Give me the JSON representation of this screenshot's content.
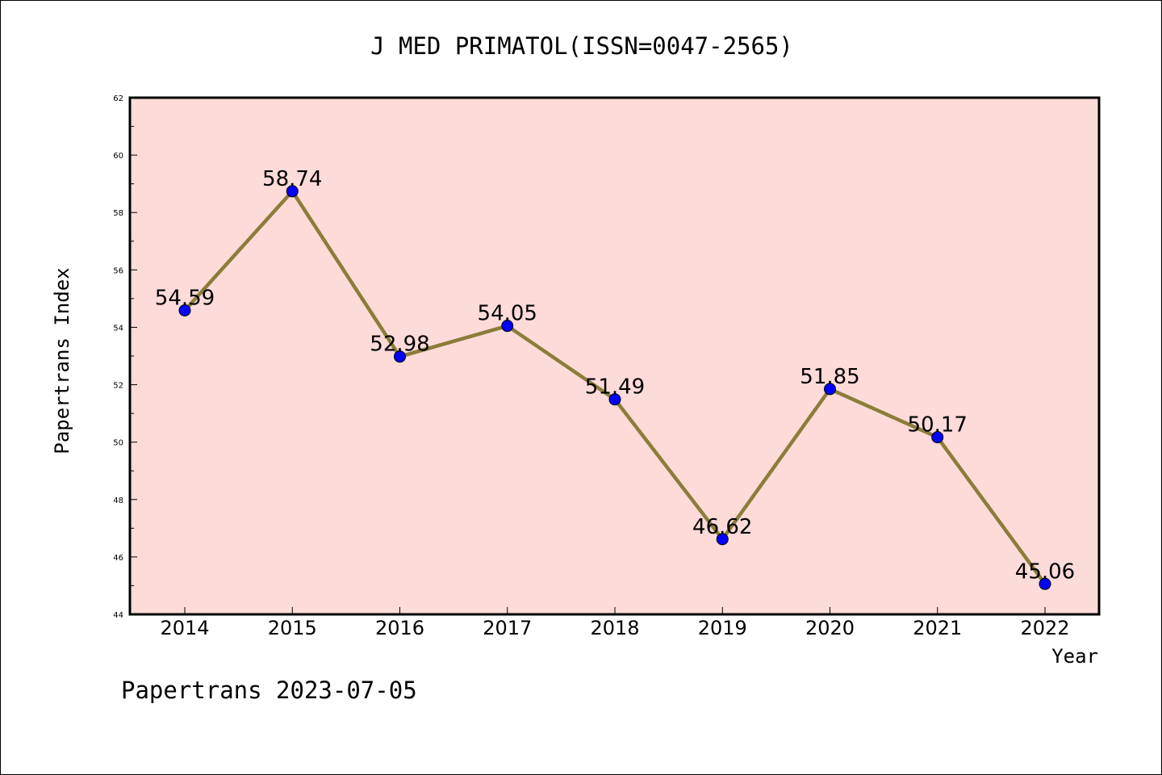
{
  "chart_data": {
    "type": "line",
    "title": "J MED PRIMATOL(ISSN=0047-2565)",
    "xlabel": "Year",
    "ylabel": "Papertrans Index",
    "categories": [
      "2014",
      "2015",
      "2016",
      "2017",
      "2018",
      "2019",
      "2020",
      "2021",
      "2022"
    ],
    "series": [
      {
        "values": [
          54.59,
          58.74,
          52.98,
          54.05,
          51.49,
          46.62,
          51.85,
          50.17,
          45.06
        ],
        "labels": [
          "54.59",
          "58.74",
          "52.98",
          "54.05",
          "51.49",
          "46.62",
          "51.85",
          "50.17",
          "45.06"
        ]
      }
    ],
    "ylim": [
      44,
      62
    ],
    "yticks": [
      "44",
      "46",
      "48",
      "50",
      "52",
      "54",
      "56",
      "58",
      "60",
      "62"
    ],
    "grid": false,
    "legend": "none"
  },
  "footer": {
    "note": "Papertrans 2023-07-05"
  },
  "colors": {
    "plot_background": "#fddbd9",
    "line": "#8b7d3a",
    "marker": "#0000ff"
  }
}
